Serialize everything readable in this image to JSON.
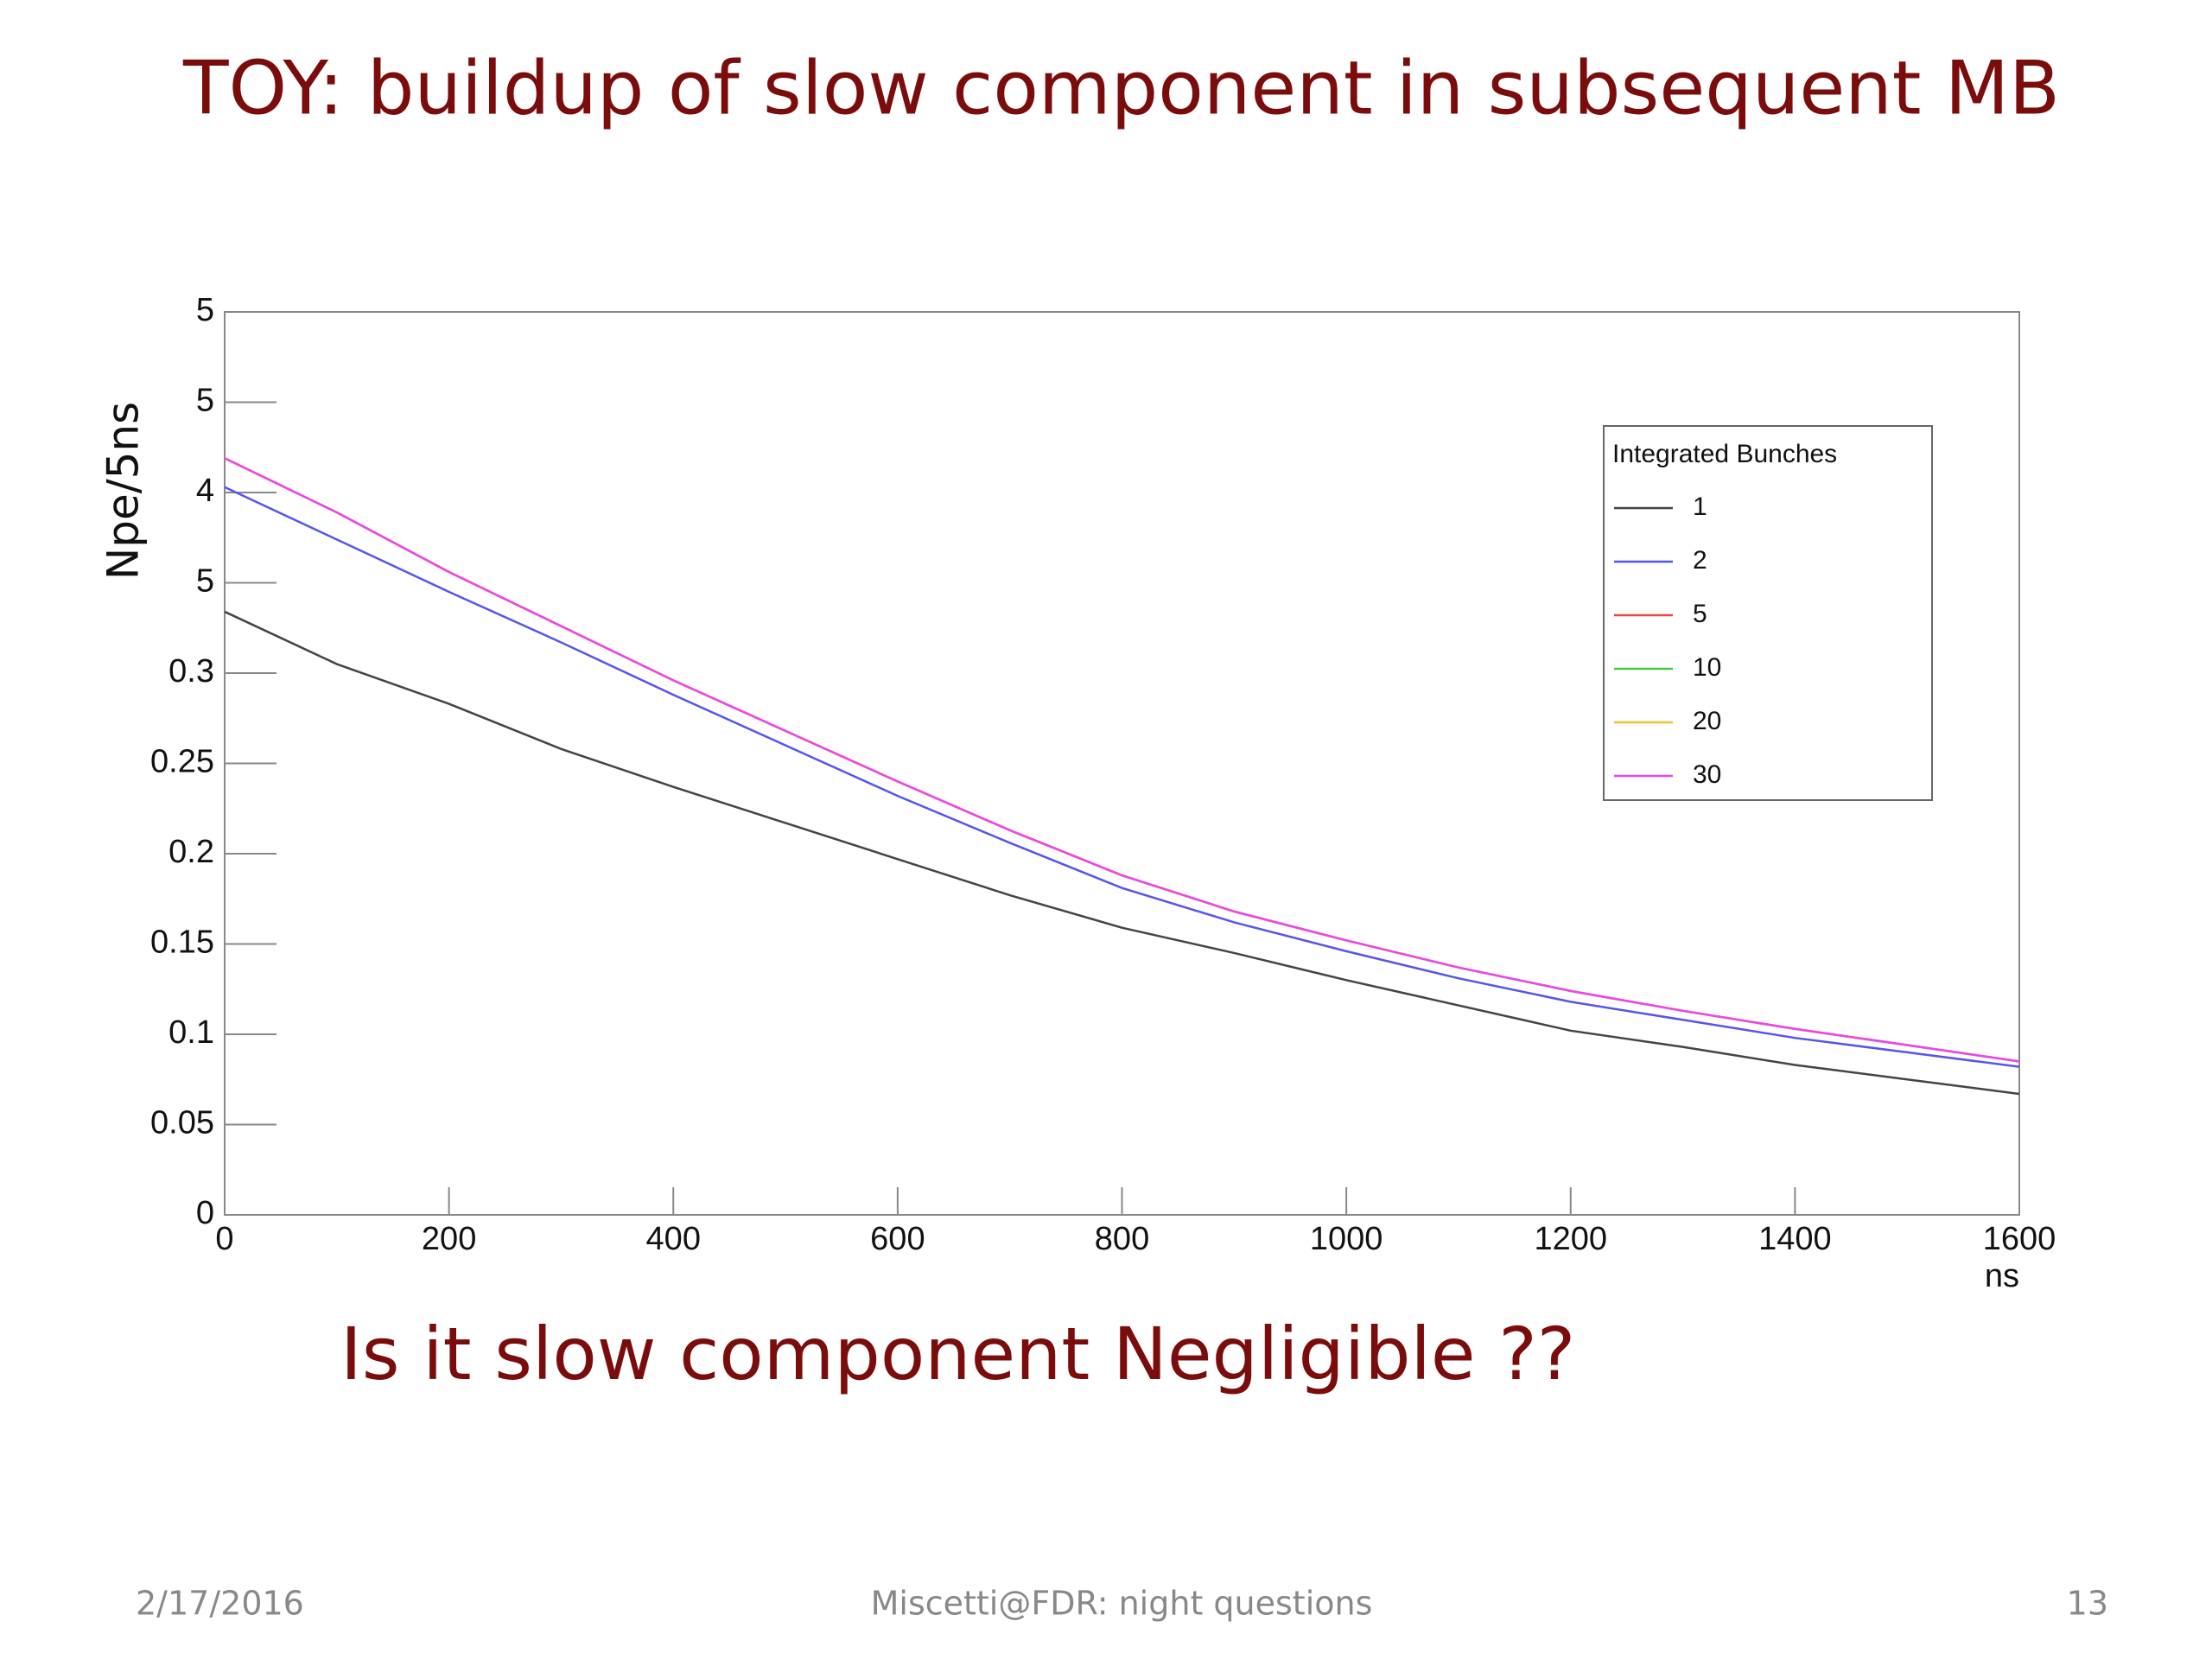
{
  "chart_data": {
    "type": "line",
    "title": "TOY: buildup of slow component in subsequent MB",
    "annotation": "Is it slow component Negligible ??",
    "ylabel": "Npe/5ns",
    "xlabel": "ns",
    "x": [
      0,
      100,
      200,
      300,
      400,
      500,
      600,
      700,
      800,
      900,
      1000,
      1100,
      1200,
      1300,
      1400,
      1500,
      1600
    ],
    "series": [
      {
        "name": "1",
        "color": "#444444",
        "values": [
          0.334,
          0.305,
          0.283,
          0.258,
          0.237,
          0.217,
          0.197,
          0.177,
          0.159,
          0.145,
          0.13,
          0.116,
          0.102,
          0.093,
          0.083,
          0.075,
          0.067
        ]
      },
      {
        "name": "2",
        "color": "#5555ee",
        "values": [
          0.403,
          0.374,
          0.345,
          0.317,
          0.288,
          0.26,
          0.232,
          0.206,
          0.181,
          0.162,
          0.146,
          0.131,
          0.118,
          0.108,
          0.098,
          0.09,
          0.082
        ]
      },
      {
        "name": "5",
        "color": "#ee4444",
        "values": [
          0.419,
          0.389,
          0.356,
          0.326,
          0.296,
          0.268,
          0.24,
          0.213,
          0.188,
          0.168,
          0.152,
          0.137,
          0.124,
          0.113,
          0.103,
          0.094,
          0.085
        ]
      },
      {
        "name": "10",
        "color": "#44cc44",
        "values": [
          0.419,
          0.389,
          0.356,
          0.326,
          0.296,
          0.268,
          0.24,
          0.213,
          0.188,
          0.168,
          0.152,
          0.137,
          0.124,
          0.113,
          0.103,
          0.094,
          0.085
        ]
      },
      {
        "name": "20",
        "color": "#f0c030",
        "values": [
          0.419,
          0.389,
          0.356,
          0.326,
          0.296,
          0.268,
          0.24,
          0.213,
          0.188,
          0.168,
          0.152,
          0.137,
          0.124,
          0.113,
          0.103,
          0.094,
          0.085
        ]
      },
      {
        "name": "30",
        "color": "#ee44ee",
        "values": [
          0.419,
          0.389,
          0.356,
          0.326,
          0.296,
          0.268,
          0.24,
          0.213,
          0.188,
          0.168,
          0.152,
          0.137,
          0.124,
          0.113,
          0.103,
          0.094,
          0.085
        ]
      }
    ],
    "legend_title": "Integrated Bunches",
    "legend": "upper right",
    "xlim": [
      0,
      1600
    ],
    "xticks": [
      0,
      200,
      400,
      600,
      800,
      1000,
      1200,
      1400,
      1600
    ],
    "ylim": [
      0,
      0.5
    ],
    "yticks": [
      0,
      0.05,
      0.1,
      0.15,
      0.2,
      0.25,
      0.3,
      {
        "value": 0.35,
        "label": "5"
      },
      {
        "value": 0.4,
        "label": "4"
      },
      {
        "value": 0.45,
        "label": "5"
      },
      {
        "value": 0.5,
        "label": "5"
      }
    ]
  },
  "footer": {
    "date": "2/17/2016",
    "text": "Miscetti@FDR: night questions",
    "page": "13"
  }
}
